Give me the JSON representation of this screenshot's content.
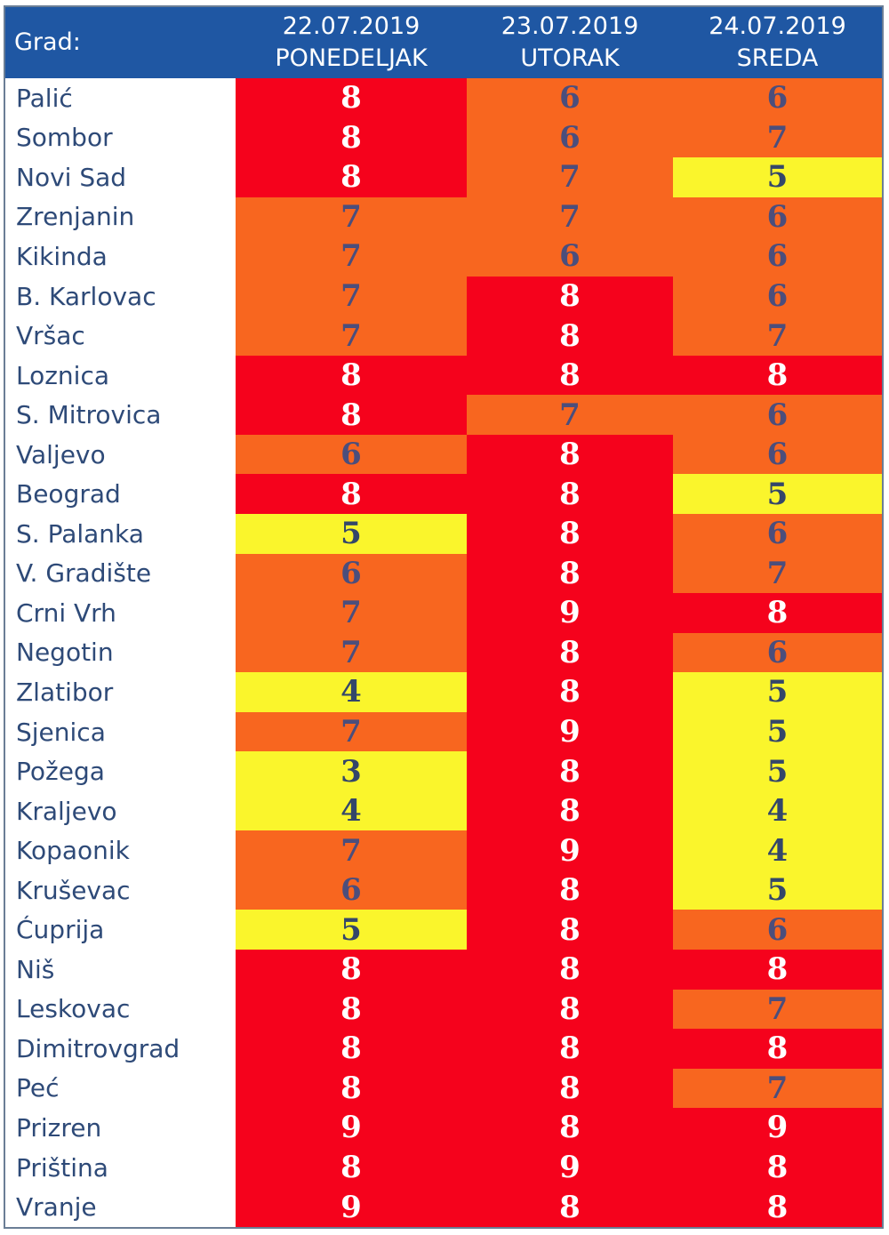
{
  "header": {
    "city_label": "Grad:",
    "days": [
      {
        "date": "22.07.2019",
        "weekday": "PONEDELJAK"
      },
      {
        "date": "23.07.2019",
        "weekday": "UTORAK"
      },
      {
        "date": "24.07.2019",
        "weekday": "SREDA"
      }
    ]
  },
  "colors": {
    "header": "#1f57a3",
    "high": "#f5021c",
    "medium": "#f8661f",
    "low": "#faf52c",
    "text_on_high": "#ffffff",
    "text_on_medium": "#4b4e7c",
    "text_on_low": "#34466a"
  },
  "rows": [
    {
      "city": "Palić",
      "values": [
        "8",
        "6",
        "6"
      ]
    },
    {
      "city": "Sombor",
      "values": [
        "8",
        "6",
        "7"
      ]
    },
    {
      "city": "Novi Sad",
      "values": [
        "8",
        "7",
        "5"
      ]
    },
    {
      "city": "Zrenjanin",
      "values": [
        "7",
        "7",
        "6"
      ]
    },
    {
      "city": "Kikinda",
      "values": [
        "7",
        "6",
        "6"
      ]
    },
    {
      "city": "B. Karlovac",
      "values": [
        "7",
        "8",
        "6"
      ]
    },
    {
      "city": "Vršac",
      "values": [
        "7",
        "8",
        "7"
      ]
    },
    {
      "city": "Loznica",
      "values": [
        "8",
        "8",
        "8"
      ]
    },
    {
      "city": "S. Mitrovica",
      "values": [
        "8",
        "7",
        "6"
      ]
    },
    {
      "city": "Valjevo",
      "values": [
        "6",
        "8",
        "6"
      ]
    },
    {
      "city": "Beograd",
      "values": [
        "8",
        "8",
        "5"
      ]
    },
    {
      "city": "S. Palanka",
      "values": [
        "5",
        "8",
        "6"
      ]
    },
    {
      "city": "V. Gradište",
      "values": [
        "6",
        "8",
        "7"
      ]
    },
    {
      "city": "Crni Vrh",
      "values": [
        "7",
        "9",
        "8"
      ]
    },
    {
      "city": "Negotin",
      "values": [
        "7",
        "8",
        "6"
      ]
    },
    {
      "city": "Zlatibor",
      "values": [
        "4",
        "8",
        "5"
      ]
    },
    {
      "city": "Sjenica",
      "values": [
        "7",
        "9",
        "5"
      ]
    },
    {
      "city": "Požega",
      "values": [
        "3",
        "8",
        "5"
      ]
    },
    {
      "city": "Kraljevo",
      "values": [
        "4",
        "8",
        "4"
      ]
    },
    {
      "city": "Kopaonik",
      "values": [
        "7",
        "9",
        "4"
      ]
    },
    {
      "city": "Kruševac",
      "values": [
        "6",
        "8",
        "5"
      ]
    },
    {
      "city": "Ćuprija",
      "values": [
        "5",
        "8",
        "6"
      ]
    },
    {
      "city": "Niš",
      "values": [
        "8",
        "8",
        "8"
      ]
    },
    {
      "city": "Leskovac",
      "values": [
        "8",
        "8",
        "7"
      ]
    },
    {
      "city": "Dimitrovgrad",
      "values": [
        "8",
        "8",
        "8"
      ]
    },
    {
      "city": "Peć",
      "values": [
        "8",
        "8",
        "7"
      ]
    },
    {
      "city": "Prizren",
      "values": [
        "9",
        "8",
        "9"
      ]
    },
    {
      "city": "Priština",
      "values": [
        "8",
        "9",
        "8"
      ]
    },
    {
      "city": "Vranje",
      "values": [
        "9",
        "8",
        "8"
      ]
    }
  ]
}
